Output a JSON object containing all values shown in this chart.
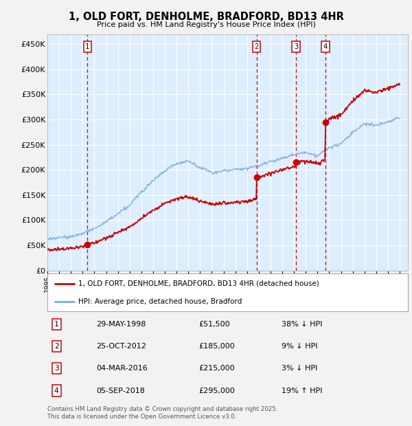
{
  "title": "1, OLD FORT, DENHOLME, BRADFORD, BD13 4HR",
  "subtitle": "Price paid vs. HM Land Registry's House Price Index (HPI)",
  "ylabel_ticks": [
    "£0",
    "£50K",
    "£100K",
    "£150K",
    "£200K",
    "£250K",
    "£300K",
    "£350K",
    "£400K",
    "£450K"
  ],
  "ytick_values": [
    0,
    50000,
    100000,
    150000,
    200000,
    250000,
    300000,
    350000,
    400000,
    450000
  ],
  "ylim": [
    0,
    470000
  ],
  "xlim_start": 1995.3,
  "xlim_end": 2025.7,
  "bg_color": "#f2f2f2",
  "plot_bg": "#ddeeff",
  "grid_color": "#ffffff",
  "hpi_color": "#7aaadd",
  "price_color": "#cc0000",
  "transactions": [
    {
      "num": 1,
      "date": "29-MAY-1998",
      "price": 51500,
      "year": 1998.41,
      "pct": "38%",
      "dir": "↓"
    },
    {
      "num": 2,
      "date": "25-OCT-2012",
      "price": 185000,
      "year": 2012.82,
      "pct": "9%",
      "dir": "↓"
    },
    {
      "num": 3,
      "date": "04-MAR-2016",
      "price": 215000,
      "year": 2016.17,
      "pct": "3%",
      "dir": "↓"
    },
    {
      "num": 4,
      "date": "05-SEP-2018",
      "price": 295000,
      "year": 2018.68,
      "pct": "19%",
      "dir": "↑"
    }
  ],
  "legend_label_price": "1, OLD FORT, DENHOLME, BRADFORD, BD13 4HR (detached house)",
  "legend_label_hpi": "HPI: Average price, detached house, Bradford",
  "footer": "Contains HM Land Registry data © Crown copyright and database right 2025.\nThis data is licensed under the Open Government Licence v3.0.",
  "table_rows": [
    [
      "1",
      "29-MAY-1998",
      "£51,500",
      "38% ↓ HPI"
    ],
    [
      "2",
      "25-OCT-2012",
      "£185,000",
      "9% ↓ HPI"
    ],
    [
      "3",
      "04-MAR-2016",
      "£215,000",
      "3% ↓ HPI"
    ],
    [
      "4",
      "05-SEP-2018",
      "£295,000",
      "19% ↑ HPI"
    ]
  ],
  "hpi_anchors_x": [
    1995,
    1996,
    1997,
    1998,
    1999,
    2000,
    2001,
    2002,
    2003,
    2004,
    2005,
    2006,
    2007,
    2008,
    2009,
    2010,
    2011,
    2012,
    2013,
    2014,
    2015,
    2016,
    2017,
    2018,
    2019,
    2020,
    2021,
    2022,
    2023,
    2024,
    2025
  ],
  "hpi_anchors_y": [
    62000,
    65000,
    68000,
    73000,
    82000,
    96000,
    112000,
    128000,
    155000,
    178000,
    198000,
    212000,
    218000,
    205000,
    195000,
    200000,
    202000,
    205000,
    212000,
    220000,
    228000,
    235000,
    240000,
    232000,
    248000,
    255000,
    278000,
    295000,
    292000,
    298000,
    305000
  ]
}
